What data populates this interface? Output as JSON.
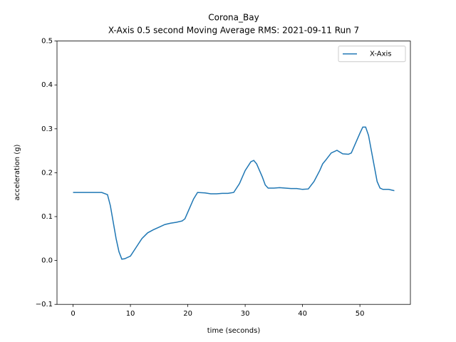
{
  "chart_data": {
    "type": "line",
    "title": "Corona_Bay",
    "subtitle": "X-Axis 0.5 second Moving Average RMS: 2021-09-11 Run 7",
    "xlabel": "time (seconds)",
    "ylabel": "acceleration (g)",
    "x": [
      0,
      5,
      6,
      6.5,
      7.5,
      8,
      8.5,
      9,
      10,
      11,
      12,
      13,
      14,
      15,
      16,
      17,
      18,
      19,
      19.5,
      20,
      21,
      21.7,
      23,
      24,
      25,
      26,
      27,
      28,
      29,
      30,
      31,
      31.5,
      32,
      33,
      33.5,
      34,
      35,
      36,
      37,
      38,
      39,
      40,
      41,
      42,
      43,
      43.5,
      44,
      45,
      46,
      47,
      48,
      48.5,
      49,
      50,
      50.5,
      51,
      51.5,
      52,
      53,
      53.5,
      54,
      55,
      56
    ],
    "series": [
      {
        "name": "X-Axis",
        "color": "#1f77b4",
        "values": [
          0.155,
          0.155,
          0.15,
          0.125,
          0.05,
          0.02,
          0.003,
          0.004,
          0.01,
          0.03,
          0.05,
          0.063,
          0.07,
          0.076,
          0.082,
          0.085,
          0.087,
          0.09,
          0.095,
          0.11,
          0.14,
          0.155,
          0.154,
          0.152,
          0.152,
          0.153,
          0.153,
          0.155,
          0.175,
          0.205,
          0.225,
          0.228,
          0.22,
          0.19,
          0.172,
          0.165,
          0.165,
          0.166,
          0.165,
          0.164,
          0.164,
          0.162,
          0.163,
          0.18,
          0.205,
          0.22,
          0.228,
          0.245,
          0.251,
          0.243,
          0.242,
          0.245,
          0.26,
          0.29,
          0.304,
          0.304,
          0.285,
          0.25,
          0.18,
          0.165,
          0.162,
          0.162,
          0.159
        ]
      }
    ],
    "xlim": [
      -2.8,
      58.8
    ],
    "xticks": [
      0,
      10,
      20,
      30,
      40,
      50
    ],
    "ylim": [
      -0.1,
      0.5
    ],
    "yticks": [
      -0.1,
      0.0,
      0.1,
      0.2,
      0.3,
      0.4,
      0.5
    ],
    "legend": "upper right"
  }
}
